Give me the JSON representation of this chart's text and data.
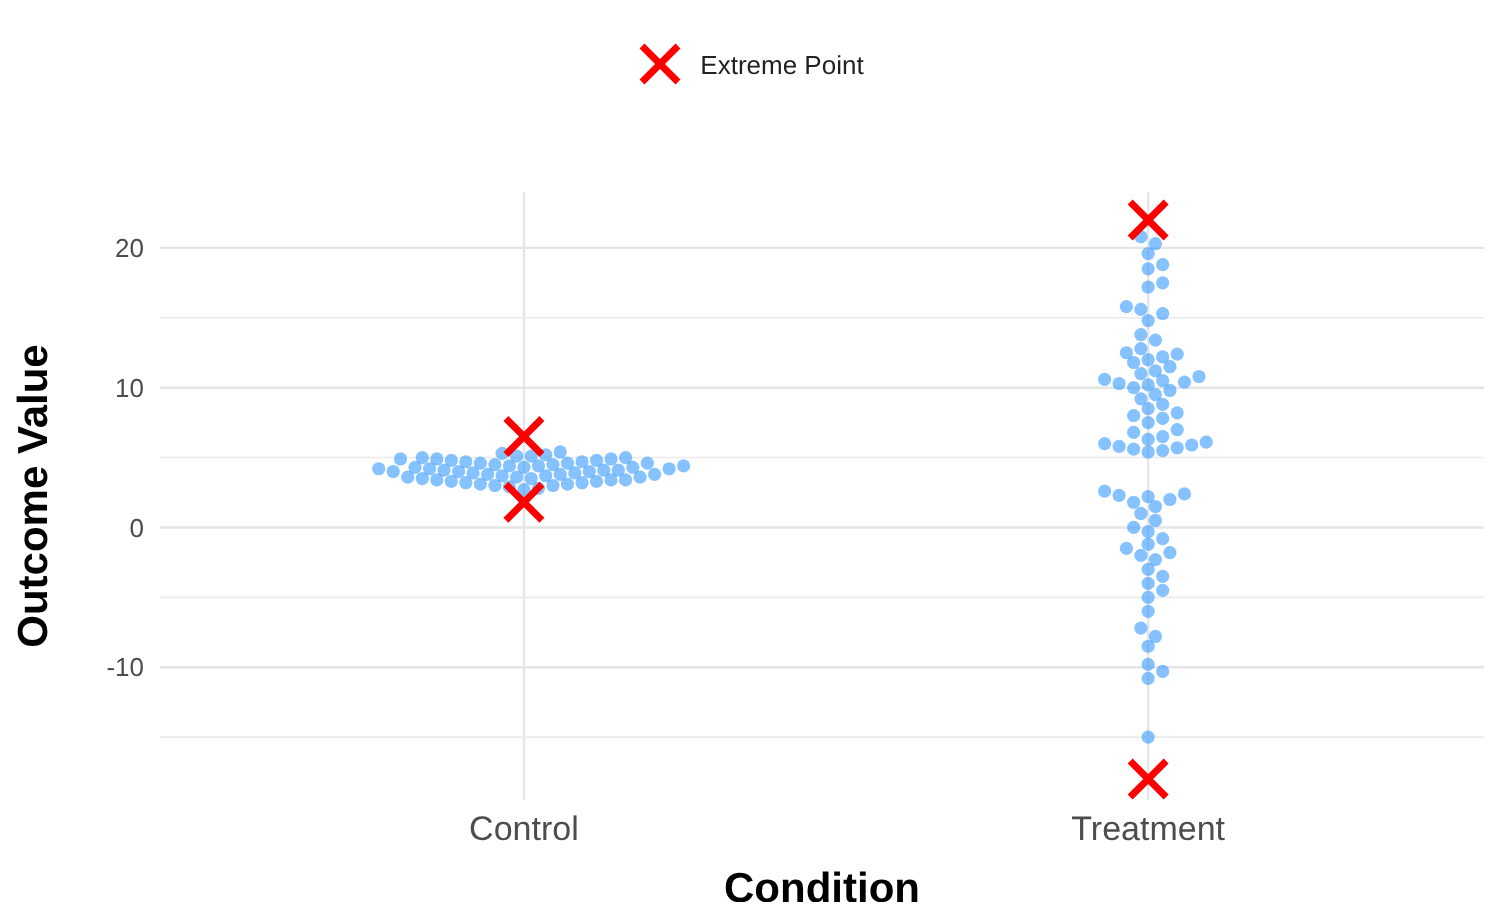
{
  "chart_data": {
    "type": "scatter",
    "xlabel": "Condition",
    "ylabel": "Outcome Value",
    "categories": [
      "Control",
      "Treatment"
    ],
    "ylim": [
      -19.5,
      24
    ],
    "yticks": [
      -10,
      0,
      10,
      20
    ],
    "grid": true,
    "legend": "top",
    "marker": "circle",
    "series": [
      {
        "color": "#3399ff",
        "x": [
          "Control",
          "Control",
          "Control",
          "Control",
          "Control",
          "Control",
          "Control",
          "Control",
          "Control",
          "Control",
          "Control",
          "Control",
          "Control",
          "Control",
          "Control",
          "Control",
          "Control",
          "Control",
          "Control",
          "Control",
          "Control",
          "Control",
          "Control",
          "Control",
          "Control",
          "Control",
          "Control",
          "Control",
          "Control",
          "Control",
          "Control",
          "Control",
          "Control",
          "Control",
          "Control",
          "Control",
          "Control",
          "Control",
          "Control",
          "Control",
          "Control",
          "Control",
          "Control",
          "Control",
          "Control",
          "Control",
          "Control",
          "Control",
          "Control",
          "Control",
          "Control",
          "Control",
          "Control",
          "Control",
          "Control",
          "Control",
          "Control",
          "Control",
          "Control",
          "Control",
          "Treatment",
          "Treatment",
          "Treatment",
          "Treatment",
          "Treatment",
          "Treatment",
          "Treatment",
          "Treatment",
          "Treatment",
          "Treatment",
          "Treatment",
          "Treatment",
          "Treatment",
          "Treatment",
          "Treatment",
          "Treatment",
          "Treatment",
          "Treatment",
          "Treatment",
          "Treatment",
          "Treatment",
          "Treatment",
          "Treatment",
          "Treatment",
          "Treatment",
          "Treatment",
          "Treatment",
          "Treatment",
          "Treatment",
          "Treatment",
          "Treatment",
          "Treatment",
          "Treatment",
          "Treatment",
          "Treatment",
          "Treatment",
          "Treatment",
          "Treatment",
          "Treatment",
          "Treatment",
          "Treatment",
          "Treatment",
          "Treatment",
          "Treatment",
          "Treatment",
          "Treatment",
          "Treatment",
          "Treatment",
          "Treatment",
          "Treatment",
          "Treatment",
          "Treatment",
          "Treatment",
          "Treatment",
          "Treatment",
          "Treatment",
          "Treatment",
          "Treatment",
          "Treatment",
          "Treatment",
          "Treatment",
          "Treatment",
          "Treatment",
          "Treatment",
          "Treatment",
          "Treatment",
          "Treatment",
          "Treatment",
          "Treatment",
          "Treatment",
          "Treatment",
          "Treatment",
          "Treatment",
          "Treatment",
          "Treatment",
          "Treatment",
          "Treatment",
          "Treatment",
          "Treatment",
          "Treatment"
        ],
        "values": [
          2.7,
          2.8,
          2.9,
          3.0,
          3.0,
          3.1,
          3.2,
          3.2,
          3.3,
          3.3,
          3.4,
          3.4,
          3.5,
          3.5,
          3.6,
          3.6,
          3.7,
          3.7,
          3.8,
          3.8,
          3.8,
          3.9,
          3.9,
          4.0,
          4.0,
          4.0,
          4.1,
          4.1,
          4.1,
          4.2,
          4.2,
          4.2,
          4.3,
          4.3,
          4.3,
          4.4,
          4.4,
          4.5,
          4.5,
          4.6,
          4.6,
          4.7,
          4.7,
          4.8,
          4.8,
          4.9,
          4.9,
          5.0,
          5.0,
          5.1,
          5.1,
          5.2,
          5.3,
          5.4,
          3.1,
          3.6,
          4.4,
          4.6,
          3.4,
          4.9,
          20.8,
          20.3,
          19.6,
          18.8,
          18.5,
          17.5,
          17.2,
          15.6,
          15.8,
          15.3,
          14.8,
          13.8,
          13.4,
          12.8,
          12.5,
          12.2,
          12.0,
          12.4,
          11.8,
          11.5,
          11.2,
          11.0,
          10.8,
          10.6,
          10.5,
          10.4,
          10.3,
          10.2,
          10.0,
          9.8,
          9.5,
          9.2,
          8.8,
          8.5,
          8.2,
          8.0,
          7.8,
          7.5,
          7.0,
          6.8,
          6.5,
          6.3,
          6.1,
          6.0,
          5.9,
          5.8,
          5.7,
          5.6,
          5.5,
          5.4,
          2.6,
          2.4,
          2.3,
          2.2,
          2.0,
          1.8,
          1.5,
          1.0,
          0.5,
          0.0,
          -0.3,
          -0.8,
          -1.2,
          -1.5,
          -1.8,
          -2.0,
          -2.3,
          -3.0,
          -3.5,
          -4.0,
          -4.5,
          -5.0,
          -6.0,
          -7.2,
          -7.8,
          -8.5,
          -9.8,
          -10.3,
          -10.8,
          -15.0
        ]
      },
      {
        "name": "Extreme Point",
        "color": "#ff0000",
        "marker": "cross",
        "x": [
          "Control",
          "Control",
          "Treatment",
          "Treatment"
        ],
        "values": [
          6.5,
          1.8,
          22,
          -18
        ]
      }
    ]
  }
}
